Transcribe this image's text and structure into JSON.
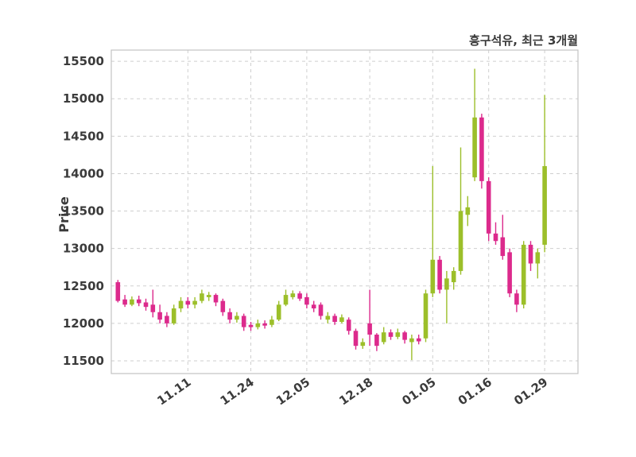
{
  "chart": {
    "title": "흥구석유, 최근 3개월",
    "ylabel": "Price"
  },
  "chart_data": {
    "type": "candlestick",
    "title": "흥구석유, 최근 3개월",
    "xlabel": "",
    "ylabel": "Price",
    "grid": true,
    "legend": false,
    "y_range": [
      11330,
      15650
    ],
    "y_ticks": [
      11500,
      12000,
      12500,
      13000,
      13500,
      14000,
      14500,
      15000,
      15500
    ],
    "x_ticks": [
      {
        "label": "11.11",
        "index": 10
      },
      {
        "label": "11.24",
        "index": 19
      },
      {
        "label": "12.05",
        "index": 27
      },
      {
        "label": "12.18",
        "index": 36
      },
      {
        "label": "01.05",
        "index": 45
      },
      {
        "label": "01.16",
        "index": 53
      },
      {
        "label": "01.29",
        "index": 61
      }
    ],
    "colors": {
      "up": "#9cbf2a",
      "down": "#dc2a8c",
      "grid": "#cfcfcf",
      "spine": "#c3c3c3",
      "text": "#3b3b3b",
      "background": "#ffffff"
    },
    "ohlc_order": [
      "open",
      "high",
      "low",
      "close"
    ],
    "candles": [
      [
        12550,
        12580,
        12280,
        12300
      ],
      [
        12320,
        12380,
        12220,
        12250
      ],
      [
        12250,
        12360,
        12230,
        12320
      ],
      [
        12320,
        12370,
        12230,
        12270
      ],
      [
        12280,
        12330,
        12170,
        12220
      ],
      [
        12250,
        12450,
        12080,
        12150
      ],
      [
        12150,
        12250,
        12000,
        12050
      ],
      [
        12100,
        12150,
        11950,
        12000
      ],
      [
        12000,
        12250,
        11980,
        12200
      ],
      [
        12200,
        12350,
        12150,
        12300
      ],
      [
        12300,
        12350,
        12200,
        12250
      ],
      [
        12250,
        12350,
        12200,
        12300
      ],
      [
        12300,
        12450,
        12270,
        12400
      ],
      [
        12350,
        12420,
        12300,
        12380
      ],
      [
        12380,
        12400,
        12230,
        12280
      ],
      [
        12300,
        12330,
        12100,
        12150
      ],
      [
        12150,
        12200,
        12000,
        12050
      ],
      [
        12050,
        12150,
        12010,
        12100
      ],
      [
        12100,
        12130,
        11900,
        11950
      ],
      [
        11980,
        12020,
        11900,
        11950
      ],
      [
        11950,
        12050,
        11920,
        12000
      ],
      [
        12000,
        12040,
        11930,
        11970
      ],
      [
        11980,
        12100,
        11950,
        12050
      ],
      [
        12050,
        12300,
        12030,
        12250
      ],
      [
        12250,
        12450,
        12230,
        12380
      ],
      [
        12350,
        12440,
        12320,
        12400
      ],
      [
        12400,
        12430,
        12300,
        12330
      ],
      [
        12350,
        12400,
        12200,
        12250
      ],
      [
        12250,
        12300,
        12150,
        12200
      ],
      [
        12250,
        12280,
        12050,
        12100
      ],
      [
        12050,
        12150,
        12000,
        12100
      ],
      [
        12100,
        12130,
        11980,
        12020
      ],
      [
        12020,
        12120,
        12000,
        12080
      ],
      [
        12050,
        12080,
        11850,
        11900
      ],
      [
        11900,
        11930,
        11650,
        11700
      ],
      [
        11700,
        11800,
        11660,
        11750
      ],
      [
        12000,
        12450,
        11700,
        11850
      ],
      [
        11850,
        11870,
        11630,
        11700
      ],
      [
        11750,
        11950,
        11720,
        11880
      ],
      [
        11880,
        11920,
        11780,
        11820
      ],
      [
        11820,
        11930,
        11790,
        11880
      ],
      [
        11880,
        11900,
        11730,
        11780
      ],
      [
        11750,
        11850,
        11510,
        11800
      ],
      [
        11800,
        11850,
        11720,
        11760
      ],
      [
        11800,
        12450,
        11750,
        12400
      ],
      [
        12400,
        14100,
        12350,
        12850
      ],
      [
        12850,
        12900,
        12400,
        12450
      ],
      [
        12450,
        12700,
        12000,
        12600
      ],
      [
        12550,
        12750,
        12450,
        12700
      ],
      [
        12700,
        14350,
        12650,
        13500
      ],
      [
        13450,
        13700,
        13300,
        13550
      ],
      [
        13950,
        15400,
        13900,
        14750
      ],
      [
        14750,
        14800,
        13800,
        13900
      ],
      [
        13900,
        13950,
        13100,
        13200
      ],
      [
        13200,
        13350,
        13050,
        13100
      ],
      [
        13150,
        13450,
        12850,
        12900
      ],
      [
        12950,
        13000,
        12350,
        12400
      ],
      [
        12400,
        12450,
        12150,
        12250
      ],
      [
        12250,
        13100,
        12200,
        13050
      ],
      [
        13050,
        13100,
        12700,
        12800
      ],
      [
        12800,
        13000,
        12600,
        12950
      ],
      [
        13050,
        15050,
        12950,
        14100
      ]
    ]
  }
}
